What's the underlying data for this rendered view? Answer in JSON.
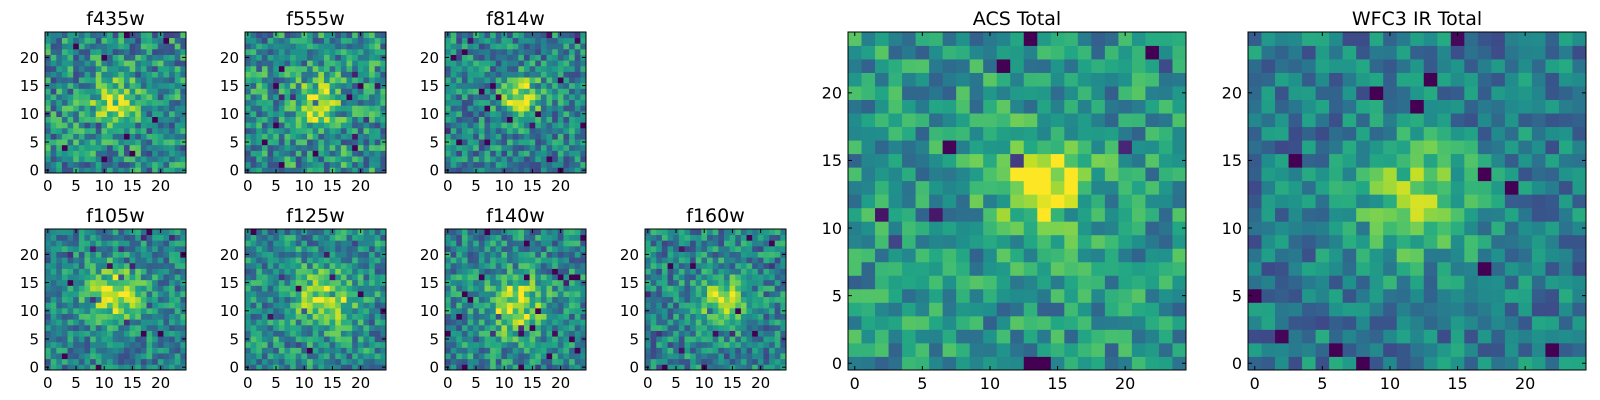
{
  "chart_data": [
    {
      "type": "heatmap",
      "title": "f435w",
      "grid_size": 25,
      "xlim": [
        0,
        24
      ],
      "ylim": [
        0,
        24
      ],
      "xticks": [
        "0",
        "5",
        "10",
        "15",
        "20"
      ],
      "yticks": [
        "0",
        "5",
        "10",
        "15",
        "20"
      ],
      "colormap": "viridis",
      "source_profile": {
        "center": [
          12,
          12
        ],
        "peak": 0.68,
        "sigma": 3.0,
        "noise": 0.28,
        "floor": 0.48
      },
      "seed": 11
    },
    {
      "type": "heatmap",
      "title": "f555w",
      "grid_size": 25,
      "xlim": [
        0,
        24
      ],
      "ylim": [
        0,
        24
      ],
      "xticks": [
        "0",
        "5",
        "10",
        "15",
        "20"
      ],
      "yticks": [
        "0",
        "5",
        "10",
        "15",
        "20"
      ],
      "colormap": "viridis",
      "source_profile": {
        "center": [
          12,
          12
        ],
        "peak": 0.7,
        "sigma": 3.0,
        "noise": 0.28,
        "floor": 0.5
      },
      "seed": 23
    },
    {
      "type": "heatmap",
      "title": "f814w",
      "grid_size": 25,
      "xlim": [
        0,
        24
      ],
      "ylim": [
        0,
        24
      ],
      "xticks": [
        "0",
        "5",
        "10",
        "15",
        "20"
      ],
      "yticks": [
        "0",
        "5",
        "10",
        "15",
        "20"
      ],
      "colormap": "viridis",
      "source_profile": {
        "center": [
          13,
          13
        ],
        "peak": 0.9,
        "sigma": 2.5,
        "noise": 0.25,
        "floor": 0.45
      },
      "seed": 37
    },
    {
      "type": "heatmap",
      "title": "f105w",
      "grid_size": 25,
      "xlim": [
        0,
        24
      ],
      "ylim": [
        0,
        24
      ],
      "xticks": [
        "0",
        "5",
        "10",
        "15",
        "20"
      ],
      "yticks": [
        "0",
        "5",
        "10",
        "15",
        "20"
      ],
      "colormap": "viridis",
      "source_profile": {
        "center": [
          12,
          13
        ],
        "peak": 0.85,
        "sigma": 3.5,
        "noise": 0.22,
        "floor": 0.45
      },
      "seed": 41
    },
    {
      "type": "heatmap",
      "title": "f125w",
      "grid_size": 25,
      "xlim": [
        0,
        24
      ],
      "ylim": [
        0,
        24
      ],
      "xticks": [
        "0",
        "5",
        "10",
        "15",
        "20"
      ],
      "yticks": [
        "0",
        "5",
        "10",
        "15",
        "20"
      ],
      "colormap": "viridis",
      "source_profile": {
        "center": [
          14,
          12
        ],
        "peak": 0.8,
        "sigma": 3.5,
        "noise": 0.24,
        "floor": 0.48
      },
      "seed": 53
    },
    {
      "type": "heatmap",
      "title": "f140w",
      "grid_size": 25,
      "xlim": [
        0,
        24
      ],
      "ylim": [
        0,
        24
      ],
      "xticks": [
        "0",
        "5",
        "10",
        "15",
        "20"
      ],
      "yticks": [
        "0",
        "5",
        "10",
        "15",
        "20"
      ],
      "colormap": "viridis",
      "source_profile": {
        "center": [
          12,
          11
        ],
        "peak": 0.8,
        "sigma": 3.5,
        "noise": 0.24,
        "floor": 0.47
      },
      "seed": 67
    },
    {
      "type": "heatmap",
      "title": "f160w",
      "grid_size": 25,
      "xlim": [
        0,
        24
      ],
      "ylim": [
        0,
        24
      ],
      "xticks": [
        "0",
        "5",
        "10",
        "15",
        "20"
      ],
      "yticks": [
        "0",
        "5",
        "10",
        "15",
        "20"
      ],
      "colormap": "viridis",
      "source_profile": {
        "center": [
          13,
          12
        ],
        "peak": 0.8,
        "sigma": 3.0,
        "noise": 0.24,
        "floor": 0.45
      },
      "seed": 79
    },
    {
      "type": "heatmap",
      "title": "ACS Total",
      "grid_size": 25,
      "xlim": [
        0,
        24
      ],
      "ylim": [
        0,
        24
      ],
      "xticks": [
        "0",
        "5",
        "10",
        "15",
        "20"
      ],
      "yticks": [
        "0",
        "5",
        "10",
        "15",
        "20"
      ],
      "colormap": "viridis",
      "source_profile": {
        "center": [
          14,
          13
        ],
        "peak": 0.85,
        "sigma": 2.5,
        "noise": 0.22,
        "floor": 0.52
      },
      "seed": 97
    },
    {
      "type": "heatmap",
      "title": "WFC3 IR Total",
      "grid_size": 25,
      "xlim": [
        0,
        24
      ],
      "ylim": [
        0,
        24
      ],
      "xticks": [
        "0",
        "5",
        "10",
        "15",
        "20"
      ],
      "yticks": [
        "0",
        "5",
        "10",
        "15",
        "20"
      ],
      "colormap": "viridis",
      "source_profile": {
        "center": [
          12,
          12
        ],
        "peak": 0.85,
        "sigma": 3.0,
        "noise": 0.2,
        "floor": 0.42
      },
      "seed": 113
    }
  ]
}
